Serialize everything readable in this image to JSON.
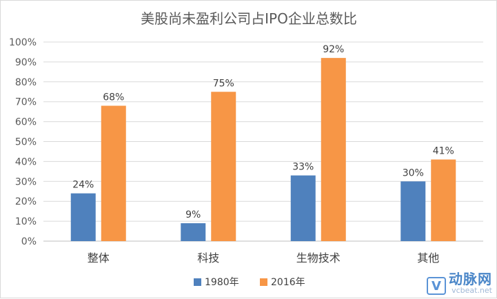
{
  "chart_data": {
    "type": "bar",
    "title": "美股尚未盈利公司占IPO企业总数比",
    "categories": [
      "整体",
      "科技",
      "生物技术",
      "其他"
    ],
    "series": [
      {
        "name": "1980年",
        "values": [
          24,
          9,
          33,
          30
        ],
        "color": "#4f81bd",
        "labels": [
          "24%",
          "9%",
          "33%",
          "30%"
        ]
      },
      {
        "name": "2016年",
        "values": [
          68,
          75,
          92,
          41
        ],
        "color": "#f79646",
        "labels": [
          "68%",
          "75%",
          "92%",
          "41%"
        ]
      }
    ],
    "yticks": [
      "0%",
      "10%",
      "20%",
      "30%",
      "40%",
      "50%",
      "60%",
      "70%",
      "80%",
      "90%",
      "100%"
    ],
    "ylim": [
      0,
      100
    ],
    "legend_position": "bottom",
    "grid": true
  },
  "watermark": {
    "logo_glyph": "V",
    "name": "动脉网",
    "url": "vcbeat.net"
  }
}
